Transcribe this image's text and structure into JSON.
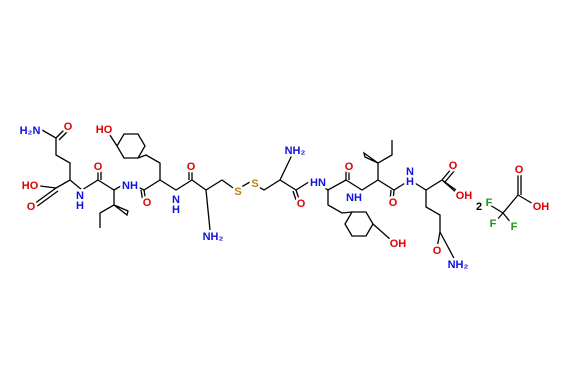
{
  "labels": [
    "H₂N",
    "O",
    "HO",
    "O",
    "N",
    "H",
    "O",
    "NH",
    "HO",
    "O",
    "N",
    "H",
    "O",
    "NH₂",
    "S",
    "S",
    "NH₂",
    "O",
    "HN",
    "O",
    "NH",
    "O",
    "N",
    "H",
    "O",
    "OH",
    "O",
    "NH₂",
    "OH",
    "2",
    "F",
    "F",
    "F",
    "O",
    "OH"
  ]
}
